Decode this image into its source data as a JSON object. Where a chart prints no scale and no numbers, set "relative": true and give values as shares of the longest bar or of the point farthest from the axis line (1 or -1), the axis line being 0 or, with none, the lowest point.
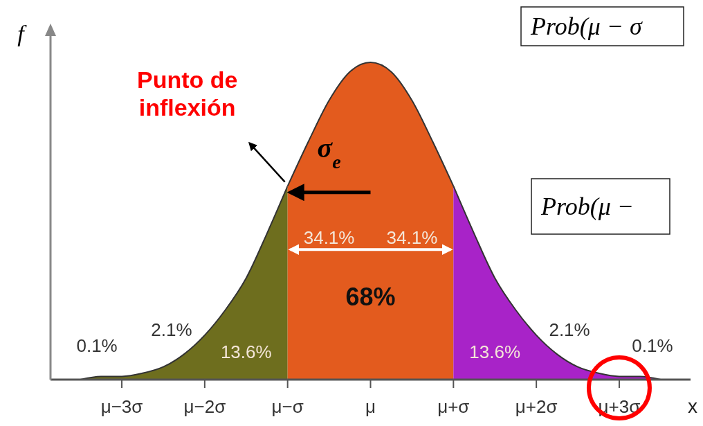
{
  "chart_data": {
    "type": "area",
    "relative": true,
    "ylabel": "f",
    "xlabel": "x",
    "tick_labels": "x",
    "categories": [
      null,
      null,
      "μ−3σ",
      null,
      null,
      null,
      "μ−2σ",
      null,
      null,
      null,
      "μ−σ",
      null,
      null,
      null,
      "μ",
      null,
      null,
      null,
      "μ+σ",
      null,
      null,
      null,
      "μ+2σ",
      null,
      null,
      null,
      "μ+3σ",
      null,
      null
    ],
    "series": [
      {
        "color": "#6e6e1e",
        "values": [
          0,
          0.01,
          0.01,
          0.02,
          0.04,
          0.08,
          0.14,
          0.22,
          0.32,
          0.46,
          0.61,
          null,
          null,
          null,
          null,
          null,
          null,
          null,
          null,
          null,
          null,
          null,
          null,
          null,
          null,
          null,
          null,
          null,
          null
        ]
      },
      {
        "color": "#e35b1e",
        "values": [
          null,
          null,
          null,
          null,
          null,
          null,
          null,
          null,
          null,
          null,
          0.61,
          0.75,
          0.88,
          0.97,
          1,
          0.97,
          0.88,
          0.75,
          0.61,
          null,
          null,
          null,
          null,
          null,
          null,
          null,
          null,
          null,
          null
        ]
      },
      {
        "color": "#a823c8",
        "values": [
          null,
          null,
          null,
          null,
          null,
          null,
          null,
          null,
          null,
          null,
          null,
          null,
          null,
          null,
          null,
          null,
          null,
          null,
          0.61,
          0.46,
          0.32,
          0.22,
          0.14,
          0.08,
          0.04,
          0.02,
          0.01,
          0.01,
          0
        ]
      }
    ],
    "annotations": [
      "Punto de inflexión",
      "σ$_{e}$",
      "34.1%",
      "34.1%",
      "68%",
      "13.6%",
      "13.6%",
      "2.1%",
      "2.1%",
      "0.1%",
      "0.1%",
      "Prob(μ − σ",
      "Prob(μ −"
    ]
  }
}
